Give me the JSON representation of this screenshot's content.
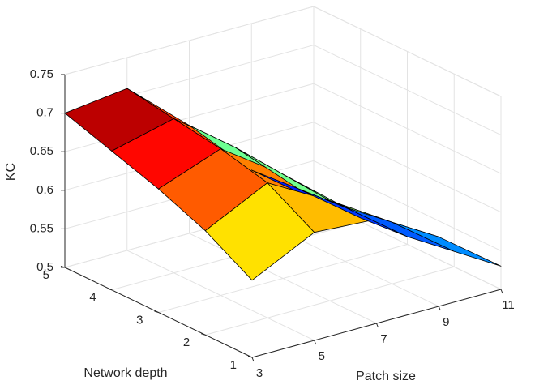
{
  "chart_data": {
    "type": "surface3d",
    "title": "",
    "xlabel": "Patch size",
    "ylabel": "Network depth",
    "zlabel": "KC",
    "x": [
      3,
      5,
      7,
      9,
      11
    ],
    "x_ticks": [
      "3",
      "5",
      "7",
      "9",
      "11"
    ],
    "y": [
      1,
      2,
      3,
      4,
      5
    ],
    "y_ticks": [
      "1",
      "2",
      "3",
      "4",
      "5"
    ],
    "z_ticks": [
      "0.5",
      "0.55",
      "0.6",
      "0.65",
      "0.7",
      "0.75"
    ],
    "zlim": [
      0.5,
      0.75
    ],
    "colormap": "jet",
    "grid": true,
    "z": [
      [
        0.6,
        0.64,
        0.635,
        0.59,
        0.53
      ],
      [
        0.635,
        0.675,
        0.63,
        0.58,
        0.52
      ],
      [
        0.66,
        0.69,
        0.635,
        0.57,
        0.51
      ],
      [
        0.68,
        0.7,
        0.64,
        0.565,
        0.505
      ],
      [
        0.7,
        0.71,
        0.64,
        0.56,
        0.5
      ]
    ]
  }
}
